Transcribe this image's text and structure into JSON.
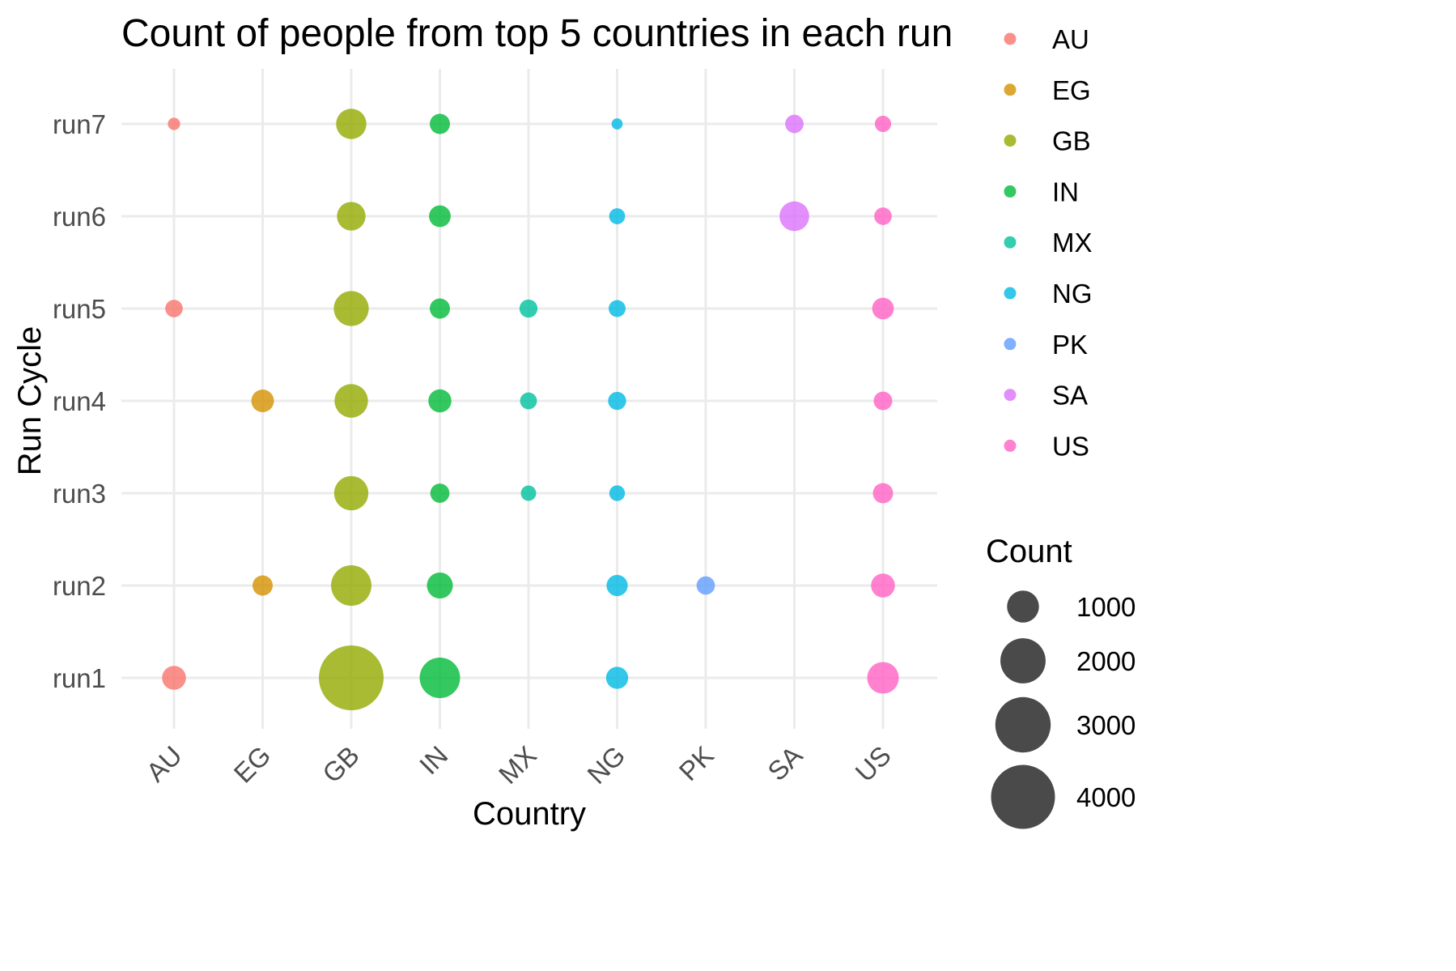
{
  "chart_data": {
    "type": "scatter",
    "title": "Count of people from top 5 countries in each run",
    "xlabel": "Country",
    "ylabel": "Run Cycle",
    "categories": [
      "AU",
      "EG",
      "GB",
      "IN",
      "MX",
      "NG",
      "PK",
      "SA",
      "US"
    ],
    "runs": [
      "run1",
      "run2",
      "run3",
      "run4",
      "run5",
      "run6",
      "run7"
    ],
    "colors": {
      "AU": "#F8766D",
      "EG": "#D39200",
      "GB": "#93AA00",
      "IN": "#00BA38",
      "MX": "#00C19F",
      "NG": "#00B9E3",
      "PK": "#619CFF",
      "SA": "#DB72FB",
      "US": "#FF61C3"
    },
    "points": [
      {
        "country": "AU",
        "run": "run7",
        "count": 150
      },
      {
        "country": "GB",
        "run": "run7",
        "count": 900
      },
      {
        "country": "IN",
        "run": "run7",
        "count": 400
      },
      {
        "country": "NG",
        "run": "run7",
        "count": 120
      },
      {
        "country": "SA",
        "run": "run7",
        "count": 330
      },
      {
        "country": "US",
        "run": "run7",
        "count": 260
      },
      {
        "country": "GB",
        "run": "run6",
        "count": 800
      },
      {
        "country": "IN",
        "run": "run6",
        "count": 460
      },
      {
        "country": "NG",
        "run": "run6",
        "count": 250
      },
      {
        "country": "SA",
        "run": "run6",
        "count": 860
      },
      {
        "country": "US",
        "run": "run6",
        "count": 300
      },
      {
        "country": "AU",
        "run": "run5",
        "count": 300
      },
      {
        "country": "GB",
        "run": "run5",
        "count": 1200
      },
      {
        "country": "IN",
        "run": "run5",
        "count": 400
      },
      {
        "country": "MX",
        "run": "run5",
        "count": 320
      },
      {
        "country": "NG",
        "run": "run5",
        "count": 280
      },
      {
        "country": "US",
        "run": "run5",
        "count": 460
      },
      {
        "country": "EG",
        "run": "run4",
        "count": 500
      },
      {
        "country": "GB",
        "run": "run4",
        "count": 1100
      },
      {
        "country": "IN",
        "run": "run4",
        "count": 520
      },
      {
        "country": "MX",
        "run": "run4",
        "count": 280
      },
      {
        "country": "NG",
        "run": "run4",
        "count": 320
      },
      {
        "country": "US",
        "run": "run4",
        "count": 340
      },
      {
        "country": "GB",
        "run": "run3",
        "count": 1150
      },
      {
        "country": "IN",
        "run": "run3",
        "count": 360
      },
      {
        "country": "MX",
        "run": "run3",
        "count": 230
      },
      {
        "country": "NG",
        "run": "run3",
        "count": 240
      },
      {
        "country": "US",
        "run": "run3",
        "count": 400
      },
      {
        "country": "EG",
        "run": "run2",
        "count": 400
      },
      {
        "country": "GB",
        "run": "run2",
        "count": 1600
      },
      {
        "country": "IN",
        "run": "run2",
        "count": 660
      },
      {
        "country": "NG",
        "run": "run2",
        "count": 440
      },
      {
        "country": "PK",
        "run": "run2",
        "count": 330
      },
      {
        "country": "US",
        "run": "run2",
        "count": 560
      },
      {
        "country": "AU",
        "run": "run1",
        "count": 560
      },
      {
        "country": "GB",
        "run": "run1",
        "count": 4100
      },
      {
        "country": "IN",
        "run": "run1",
        "count": 1600
      },
      {
        "country": "NG",
        "run": "run1",
        "count": 480
      },
      {
        "country": "US",
        "run": "run1",
        "count": 980
      }
    ],
    "color_legend": [
      "AU",
      "EG",
      "GB",
      "IN",
      "MX",
      "NG",
      "PK",
      "SA",
      "US"
    ],
    "size_legend": {
      "title": "Count",
      "breaks": [
        1000,
        2000,
        3000,
        4000
      ],
      "labels": [
        "1000",
        "2000",
        "3000",
        "4000"
      ],
      "color": "#4a4a4a"
    },
    "legend_position": "right",
    "grid": true
  }
}
